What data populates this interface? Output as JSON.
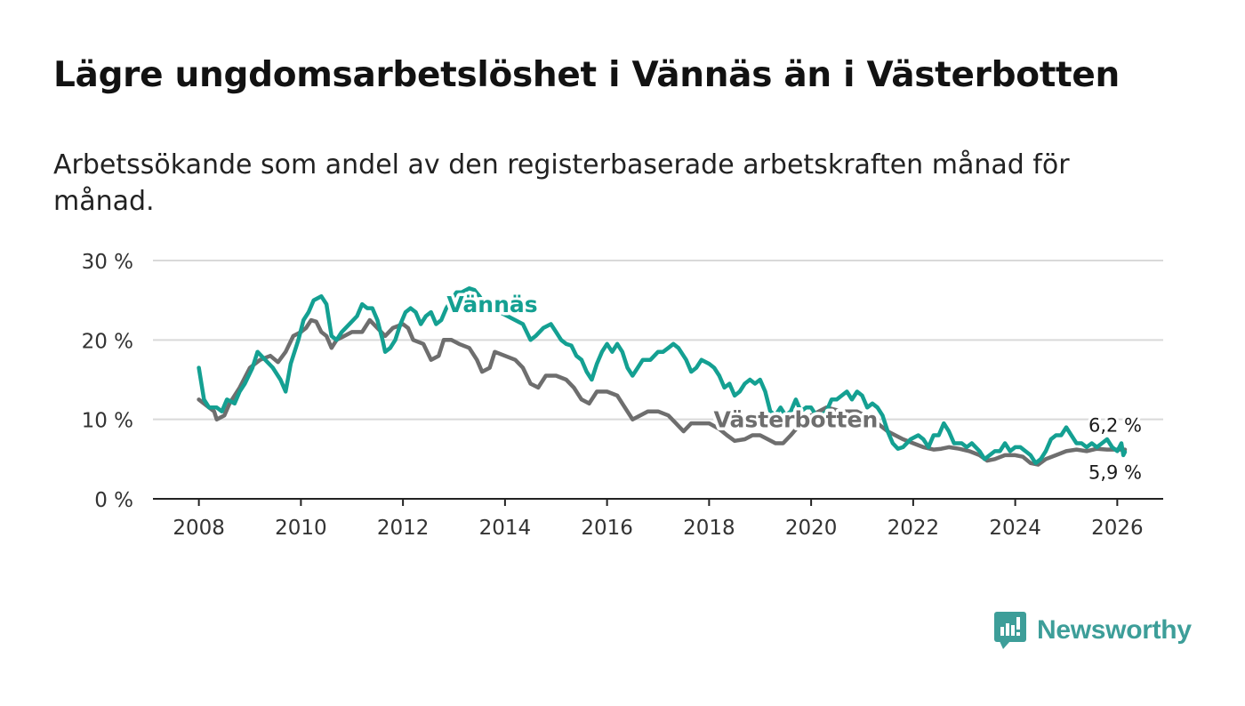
{
  "title": "Lägre ungdomsarbetslöshet i Vännäs än i Västerbotten",
  "subtitle": "Arbetssökande som andel av den registerbaserade arbetskraften månad för månad.",
  "brand": {
    "name": "Newsworthy",
    "icon": "newsworthy-logo-icon",
    "color": "#3d9e99"
  },
  "chart_data": {
    "type": "line",
    "title": "Lägre ungdomsarbetslöshet i Vännäs än i Västerbotten",
    "xlabel": "",
    "ylabel": "",
    "xlim": [
      2007.1,
      2026.9
    ],
    "ylim": [
      0,
      30
    ],
    "x_ticks": [
      2008,
      2010,
      2012,
      2014,
      2016,
      2018,
      2020,
      2022,
      2024,
      2026
    ],
    "x_tick_labels": [
      "2008",
      "2010",
      "2012",
      "2014",
      "2016",
      "2018",
      "2020",
      "2022",
      "2024",
      "2026"
    ],
    "y_ticks": [
      0,
      10,
      20,
      30
    ],
    "y_tick_labels": [
      "0 %",
      "10 %",
      "20 %",
      "30 %"
    ],
    "grid": true,
    "series": [
      {
        "name": "Västerbotten",
        "color": "#6e6e6e",
        "label": "Västerbotten",
        "label_at": [
          2019.7,
          9.0
        ],
        "end_label": "6,2 %",
        "points": [
          [
            2008.0,
            12.5
          ],
          [
            2008.2,
            11.5
          ],
          [
            2008.3,
            11.0
          ],
          [
            2008.35,
            10.0
          ],
          [
            2008.5,
            10.5
          ],
          [
            2008.6,
            12.0
          ],
          [
            2008.8,
            14.0
          ],
          [
            2009.0,
            16.5
          ],
          [
            2009.2,
            17.5
          ],
          [
            2009.4,
            18.0
          ],
          [
            2009.55,
            17.2
          ],
          [
            2009.7,
            18.5
          ],
          [
            2009.85,
            20.5
          ],
          [
            2010.0,
            21.0
          ],
          [
            2010.1,
            21.5
          ],
          [
            2010.2,
            22.5
          ],
          [
            2010.3,
            22.3
          ],
          [
            2010.4,
            21.0
          ],
          [
            2010.5,
            20.5
          ],
          [
            2010.6,
            19.0
          ],
          [
            2010.7,
            20.0
          ],
          [
            2010.85,
            20.5
          ],
          [
            2011.0,
            21.0
          ],
          [
            2011.2,
            21.0
          ],
          [
            2011.35,
            22.5
          ],
          [
            2011.5,
            21.5
          ],
          [
            2011.65,
            20.5
          ],
          [
            2011.8,
            21.5
          ],
          [
            2012.0,
            22.0
          ],
          [
            2012.1,
            21.5
          ],
          [
            2012.2,
            20.0
          ],
          [
            2012.4,
            19.5
          ],
          [
            2012.55,
            17.5
          ],
          [
            2012.7,
            18.0
          ],
          [
            2012.8,
            20.0
          ],
          [
            2012.95,
            20.0
          ],
          [
            2013.1,
            19.5
          ],
          [
            2013.3,
            19.0
          ],
          [
            2013.45,
            17.5
          ],
          [
            2013.55,
            16.0
          ],
          [
            2013.7,
            16.5
          ],
          [
            2013.8,
            18.5
          ],
          [
            2014.0,
            18.0
          ],
          [
            2014.2,
            17.5
          ],
          [
            2014.35,
            16.5
          ],
          [
            2014.5,
            14.5
          ],
          [
            2014.65,
            14.0
          ],
          [
            2014.8,
            15.5
          ],
          [
            2015.0,
            15.5
          ],
          [
            2015.2,
            15.0
          ],
          [
            2015.35,
            14.0
          ],
          [
            2015.5,
            12.5
          ],
          [
            2015.65,
            12.0
          ],
          [
            2015.8,
            13.5
          ],
          [
            2016.0,
            13.5
          ],
          [
            2016.2,
            13.0
          ],
          [
            2016.35,
            11.5
          ],
          [
            2016.5,
            10.0
          ],
          [
            2016.65,
            10.5
          ],
          [
            2016.8,
            11.0
          ],
          [
            2017.0,
            11.0
          ],
          [
            2017.2,
            10.5
          ],
          [
            2017.35,
            9.5
          ],
          [
            2017.5,
            8.5
          ],
          [
            2017.65,
            9.5
          ],
          [
            2017.8,
            9.5
          ],
          [
            2018.0,
            9.5
          ],
          [
            2018.2,
            8.8
          ],
          [
            2018.35,
            8.0
          ],
          [
            2018.5,
            7.3
          ],
          [
            2018.7,
            7.5
          ],
          [
            2018.85,
            8.0
          ],
          [
            2019.0,
            8.0
          ],
          [
            2019.15,
            7.5
          ],
          [
            2019.3,
            7.0
          ],
          [
            2019.45,
            7.0
          ],
          [
            2019.6,
            8.0
          ],
          [
            2019.8,
            9.5
          ],
          [
            2020.0,
            10.5
          ],
          [
            2020.3,
            11.5
          ],
          [
            2020.6,
            11.0
          ],
          [
            2020.9,
            11.0
          ],
          [
            2021.2,
            10.0
          ],
          [
            2021.5,
            8.5
          ],
          [
            2021.8,
            7.5
          ],
          [
            2022.0,
            7.0
          ],
          [
            2022.2,
            6.5
          ],
          [
            2022.4,
            6.2
          ],
          [
            2022.55,
            6.3
          ],
          [
            2022.7,
            6.5
          ],
          [
            2022.9,
            6.3
          ],
          [
            2023.1,
            6.0
          ],
          [
            2023.3,
            5.5
          ],
          [
            2023.45,
            4.8
          ],
          [
            2023.6,
            5.0
          ],
          [
            2023.8,
            5.5
          ],
          [
            2024.0,
            5.5
          ],
          [
            2024.15,
            5.3
          ],
          [
            2024.3,
            4.5
          ],
          [
            2024.45,
            4.3
          ],
          [
            2024.6,
            5.0
          ],
          [
            2024.8,
            5.5
          ],
          [
            2025.0,
            6.0
          ],
          [
            2025.2,
            6.2
          ],
          [
            2025.4,
            6.0
          ],
          [
            2025.6,
            6.3
          ],
          [
            2025.8,
            6.2
          ],
          [
            2026.0,
            6.2
          ],
          [
            2026.15,
            6.2
          ]
        ]
      },
      {
        "name": "Vännäs",
        "color": "#14a092",
        "label": "Vännäs",
        "label_at": [
          2013.75,
          23.5
        ],
        "end_label": "5,9 %",
        "points": [
          [
            2008.0,
            16.5
          ],
          [
            2008.1,
            12.5
          ],
          [
            2008.2,
            11.5
          ],
          [
            2008.35,
            11.5
          ],
          [
            2008.45,
            11.0
          ],
          [
            2008.55,
            12.5
          ],
          [
            2008.7,
            12.0
          ],
          [
            2008.8,
            13.5
          ],
          [
            2008.9,
            14.5
          ],
          [
            2009.05,
            16.5
          ],
          [
            2009.15,
            18.5
          ],
          [
            2009.3,
            17.5
          ],
          [
            2009.45,
            16.5
          ],
          [
            2009.6,
            15.0
          ],
          [
            2009.7,
            13.5
          ],
          [
            2009.8,
            17.0
          ],
          [
            2009.95,
            20.0
          ],
          [
            2010.05,
            22.5
          ],
          [
            2010.15,
            23.5
          ],
          [
            2010.25,
            25.0
          ],
          [
            2010.4,
            25.5
          ],
          [
            2010.5,
            24.5
          ],
          [
            2010.6,
            20.5
          ],
          [
            2010.7,
            20.0
          ],
          [
            2010.8,
            21.0
          ],
          [
            2010.95,
            22.0
          ],
          [
            2011.1,
            23.0
          ],
          [
            2011.2,
            24.5
          ],
          [
            2011.3,
            24.0
          ],
          [
            2011.4,
            24.0
          ],
          [
            2011.5,
            22.5
          ],
          [
            2011.6,
            20.0
          ],
          [
            2011.65,
            18.5
          ],
          [
            2011.75,
            19.0
          ],
          [
            2011.85,
            20.0
          ],
          [
            2011.95,
            22.0
          ],
          [
            2012.05,
            23.5
          ],
          [
            2012.15,
            24.0
          ],
          [
            2012.25,
            23.5
          ],
          [
            2012.35,
            22.0
          ],
          [
            2012.45,
            23.0
          ],
          [
            2012.55,
            23.5
          ],
          [
            2012.65,
            22.0
          ],
          [
            2012.75,
            22.5
          ],
          [
            2012.85,
            24.0
          ],
          [
            2012.95,
            25.0
          ],
          [
            2013.05,
            26.0
          ],
          [
            2013.15,
            26.0
          ],
          [
            2013.3,
            26.5
          ],
          [
            2013.4,
            26.3
          ],
          [
            2013.5,
            25.5
          ],
          [
            2013.6,
            24.5
          ],
          [
            2014.35,
            22.0
          ],
          [
            2014.5,
            20.0
          ],
          [
            2014.6,
            20.5
          ],
          [
            2014.75,
            21.5
          ],
          [
            2014.9,
            22.0
          ],
          [
            2015.0,
            21.0
          ],
          [
            2015.1,
            20.0
          ],
          [
            2015.2,
            19.5
          ],
          [
            2015.3,
            19.3
          ],
          [
            2015.4,
            18.0
          ],
          [
            2015.5,
            17.5
          ],
          [
            2015.6,
            16.0
          ],
          [
            2015.7,
            15.0
          ],
          [
            2015.8,
            17.0
          ],
          [
            2015.9,
            18.5
          ],
          [
            2016.0,
            19.5
          ],
          [
            2016.1,
            18.5
          ],
          [
            2016.2,
            19.5
          ],
          [
            2016.3,
            18.5
          ],
          [
            2016.4,
            16.5
          ],
          [
            2016.5,
            15.5
          ],
          [
            2016.6,
            16.5
          ],
          [
            2016.7,
            17.5
          ],
          [
            2016.85,
            17.5
          ],
          [
            2017.0,
            18.5
          ],
          [
            2017.1,
            18.5
          ],
          [
            2017.2,
            19.0
          ],
          [
            2017.3,
            19.5
          ],
          [
            2017.4,
            19.0
          ],
          [
            2017.55,
            17.5
          ],
          [
            2017.65,
            16.0
          ],
          [
            2017.75,
            16.5
          ],
          [
            2017.85,
            17.5
          ],
          [
            2018.0,
            17.0
          ],
          [
            2018.1,
            16.5
          ],
          [
            2018.2,
            15.5
          ],
          [
            2018.3,
            14.0
          ],
          [
            2018.4,
            14.5
          ],
          [
            2018.5,
            13.0
          ],
          [
            2018.6,
            13.5
          ],
          [
            2018.7,
            14.5
          ],
          [
            2018.8,
            15.0
          ],
          [
            2018.9,
            14.5
          ],
          [
            2019.0,
            15.0
          ],
          [
            2019.1,
            13.5
          ],
          [
            2019.2,
            11.0
          ],
          [
            2019.3,
            10.5
          ],
          [
            2019.4,
            11.5
          ],
          [
            2019.5,
            10.5
          ],
          [
            2019.6,
            11.0
          ],
          [
            2019.7,
            12.5
          ],
          [
            2019.8,
            11.0
          ],
          [
            2019.9,
            11.5
          ],
          [
            2020.0,
            11.5
          ],
          [
            2020.1,
            10.5
          ],
          [
            2020.2,
            10.5
          ],
          [
            2020.3,
            11.0
          ],
          [
            2020.4,
            12.5
          ],
          [
            2020.5,
            12.5
          ],
          [
            2020.6,
            13.0
          ],
          [
            2020.7,
            13.5
          ],
          [
            2020.8,
            12.5
          ],
          [
            2020.9,
            13.5
          ],
          [
            2021.0,
            13.0
          ],
          [
            2021.1,
            11.5
          ],
          [
            2021.2,
            12.0
          ],
          [
            2021.3,
            11.5
          ],
          [
            2021.4,
            10.5
          ],
          [
            2021.5,
            8.5
          ],
          [
            2021.6,
            7.0
          ],
          [
            2021.7,
            6.3
          ],
          [
            2021.8,
            6.5
          ],
          [
            2021.95,
            7.5
          ],
          [
            2022.1,
            8.0
          ],
          [
            2022.2,
            7.5
          ],
          [
            2022.3,
            6.5
          ],
          [
            2022.4,
            8.0
          ],
          [
            2022.5,
            8.0
          ],
          [
            2022.6,
            9.5
          ],
          [
            2022.7,
            8.5
          ],
          [
            2022.8,
            7.0
          ],
          [
            2022.95,
            7.0
          ],
          [
            2023.05,
            6.5
          ],
          [
            2023.15,
            7.0
          ],
          [
            2023.3,
            6.0
          ],
          [
            2023.4,
            5.0
          ],
          [
            2023.5,
            5.5
          ],
          [
            2023.6,
            6.0
          ],
          [
            2023.7,
            6.0
          ],
          [
            2023.8,
            7.0
          ],
          [
            2023.9,
            6.0
          ],
          [
            2024.0,
            6.5
          ],
          [
            2024.1,
            6.5
          ],
          [
            2024.2,
            6.0
          ],
          [
            2024.3,
            5.5
          ],
          [
            2024.4,
            4.5
          ],
          [
            2024.5,
            5.0
          ],
          [
            2024.6,
            6.0
          ],
          [
            2024.7,
            7.5
          ],
          [
            2024.8,
            8.0
          ],
          [
            2024.9,
            8.0
          ],
          [
            2025.0,
            9.0
          ],
          [
            2025.1,
            8.0
          ],
          [
            2025.2,
            7.0
          ],
          [
            2025.3,
            7.0
          ],
          [
            2025.4,
            6.5
          ],
          [
            2025.5,
            7.0
          ],
          [
            2025.6,
            6.5
          ],
          [
            2025.7,
            7.0
          ],
          [
            2025.8,
            7.5
          ],
          [
            2025.9,
            6.5
          ],
          [
            2026.0,
            6.0
          ],
          [
            2026.08,
            7.0
          ],
          [
            2026.12,
            5.5
          ],
          [
            2026.15,
            5.9
          ]
        ]
      }
    ]
  }
}
